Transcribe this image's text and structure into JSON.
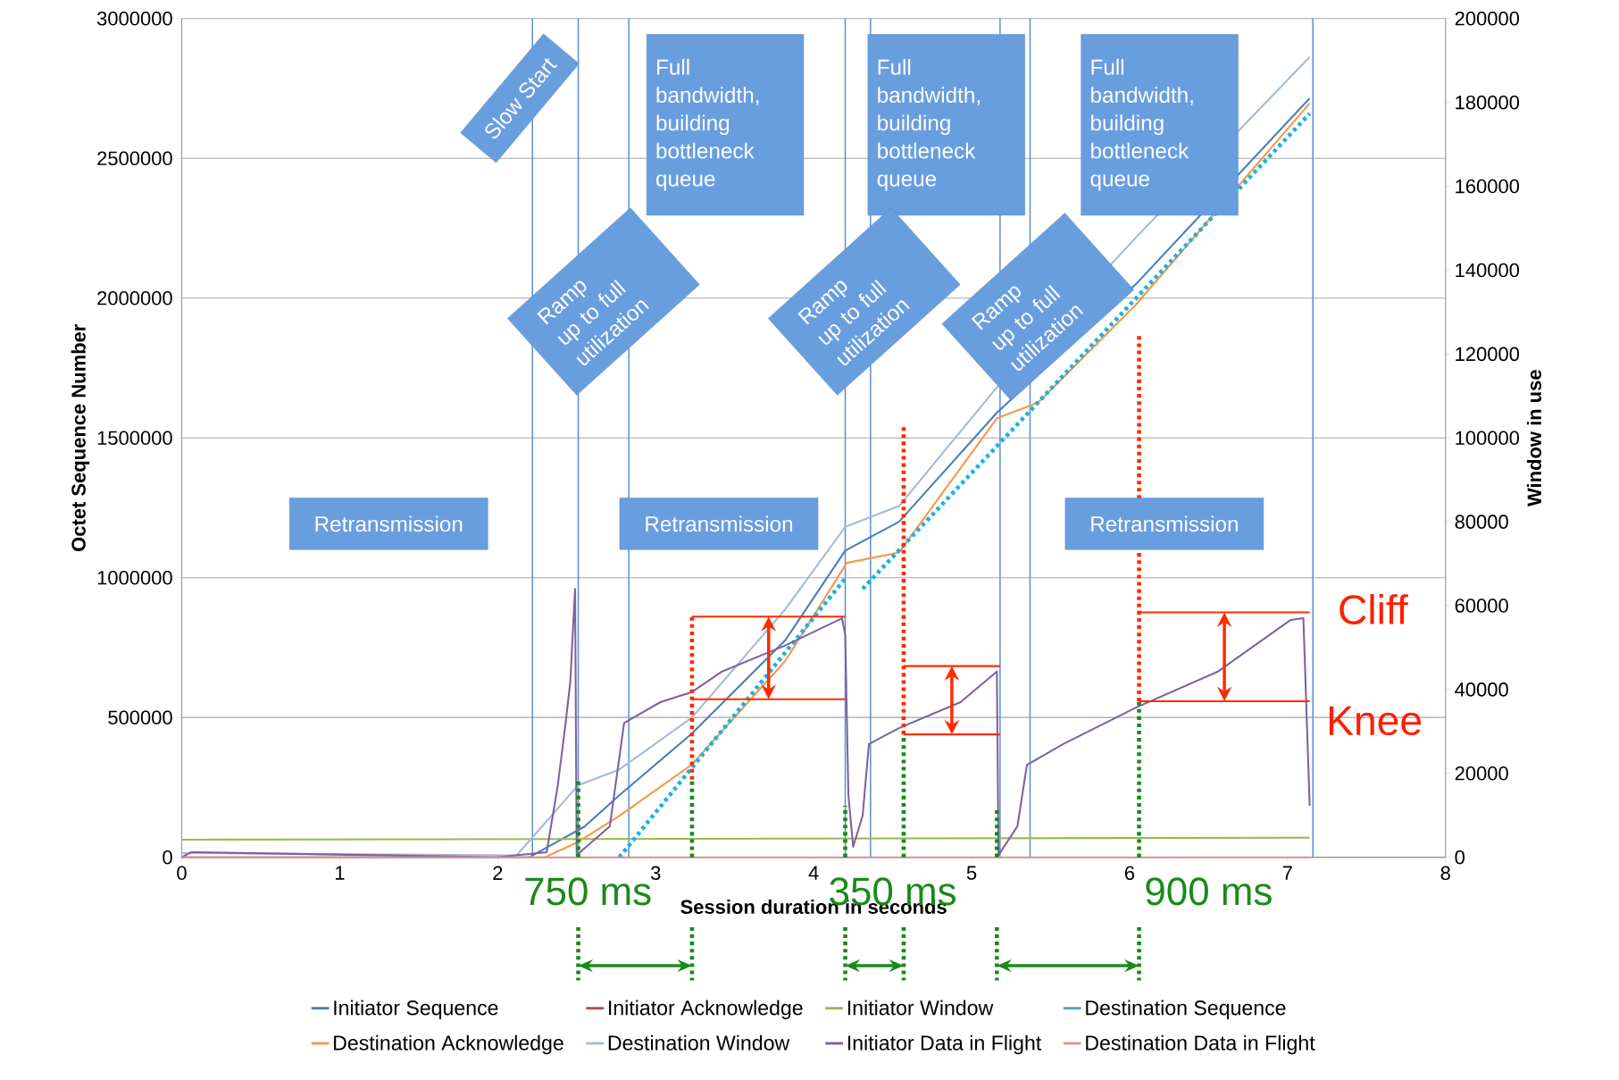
{
  "chart_data": {
    "type": "line",
    "xlabel": "Session duration in seconds",
    "ylabel": "Octet Sequence Number",
    "y2label": "Window in use",
    "xlim": [
      0,
      8
    ],
    "xticks": [
      0,
      1,
      2,
      3,
      4,
      5,
      6,
      7,
      8
    ],
    "ylim": [
      0,
      3000000
    ],
    "yticks": [
      0,
      500000,
      1000000,
      1500000,
      2000000,
      2500000,
      3000000
    ],
    "y2lim": [
      0,
      200000
    ],
    "y2ticks": [
      0,
      20000,
      40000,
      60000,
      80000,
      100000,
      120000,
      140000,
      160000,
      180000,
      200000
    ],
    "grid": "y",
    "legend": "bottom",
    "series": [
      {
        "name": "Initiator Sequence",
        "color": "#4a7ebb",
        "x": [
          0,
          2.2,
          2.55,
          2.77,
          3.23,
          3.82,
          4.2,
          4.54,
          5.16,
          6.04,
          7.14
        ],
        "values": [
          0,
          0,
          110000,
          222000,
          443000,
          776000,
          1097000,
          1200000,
          1590000,
          2050000,
          2715000
        ]
      },
      {
        "name": "Initiator Acknowledge",
        "color": "#be4b48",
        "values": [
          null,
          null
        ]
      },
      {
        "name": "Initiator Window",
        "color": "#98b954",
        "x": [
          0,
          7.14
        ],
        "values": [
          63000,
          70000
        ]
      },
      {
        "name": "Destination Sequence",
        "color": "#46aac5",
        "values": [
          null,
          null
        ]
      },
      {
        "name": "Destination Acknowledge",
        "color": "#f79646",
        "x": [
          0,
          2.3,
          2.51,
          2.77,
          3.23,
          3.82,
          4.21,
          4.54,
          5.16,
          5.42,
          6.04,
          7.14
        ],
        "values": [
          0,
          0,
          55000,
          148000,
          332000,
          702000,
          1053000,
          1090000,
          1570000,
          1626000,
          1977000,
          2697000
        ]
      },
      {
        "name": "Destination Window",
        "color": "#a5b9da",
        "x": [
          0,
          2.12,
          2.51,
          2.77,
          3.23,
          3.82,
          4.2,
          4.54,
          5.16,
          6.04,
          7.14
        ],
        "values": [
          15000,
          7000,
          258000,
          314000,
          500000,
          887000,
          1182000,
          1256000,
          1681000,
          2217000,
          2863000
        ]
      },
      {
        "name": "Initiator Data in Flight",
        "color": "#7e62a1",
        "axis": "y2",
        "x": [
          0,
          0.06,
          0.1,
          1.99,
          2.31,
          2.38,
          2.43,
          2.46,
          2.48,
          2.49,
          2.5,
          2.71,
          2.8,
          3.03,
          3.23,
          3.42,
          3.82,
          4.18,
          4.2,
          4.22,
          4.25,
          4.31,
          4.35,
          4.54,
          4.93,
          5.16,
          5.17,
          5.29,
          5.35,
          5.58,
          6.04,
          6.56,
          7.02,
          7.1,
          7.14
        ],
        "values": [
          0,
          1200,
          1200,
          0,
          1200,
          17000,
          32000,
          42000,
          57000,
          64000,
          500,
          7400,
          32000,
          37000,
          39400,
          44300,
          50500,
          57000,
          53000,
          14800,
          2500,
          9900,
          27000,
          30800,
          37000,
          44300,
          500,
          7400,
          22000,
          27000,
          35700,
          44300,
          56600,
          57000,
          12300
        ]
      },
      {
        "name": "Destination Data in Flight",
        "color": "#d99694",
        "axis": "y2",
        "x": [
          0,
          7.14
        ],
        "values": [
          0,
          0
        ]
      },
      {
        "color": "#1fb0e0",
        "line_style": "dotted",
        "x": [
          2.77,
          4.2
        ],
        "values": [
          0,
          997000
        ]
      },
      {
        "color": "#1fb0e0",
        "line_style": "dotted",
        "x": [
          4.31,
          7.14
        ],
        "values": [
          960000,
          2660000
        ]
      },
      {
        "color": "#ff2a00",
        "axis": "y2",
        "x": [
          3.23,
          4.2
        ],
        "values": [
          57400,
          57400
        ]
      },
      {
        "color": "#ff2a00",
        "axis": "y2",
        "x": [
          3.23,
          4.2
        ],
        "values": [
          37700,
          37700
        ]
      },
      {
        "color": "#ff2a00",
        "axis": "y2",
        "x": [
          4.57,
          5.18
        ],
        "values": [
          45600,
          45600
        ]
      },
      {
        "color": "#ff2a00",
        "axis": "y2",
        "x": [
          4.57,
          5.18
        ],
        "values": [
          29300,
          29300
        ]
      },
      {
        "color": "#ff2a00",
        "axis": "y2",
        "x": [
          6.06,
          7.14
        ],
        "values": [
          58400,
          58400
        ]
      },
      {
        "color": "#ff2a00",
        "axis": "y2",
        "x": [
          6.06,
          7.14
        ],
        "values": [
          37200,
          37200
        ]
      },
      {
        "color": "#ff2a00",
        "axis": "y2",
        "line_style": "dotted",
        "x": [
          3.23,
          3.23
        ],
        "values": [
          18500,
          57400
        ]
      },
      {
        "color": "#ff2a00",
        "axis": "y2",
        "line_style": "dotted",
        "x": [
          4.57,
          4.57
        ],
        "values": [
          29300,
          103000
        ]
      },
      {
        "color": "#ff2a00",
        "axis": "y2",
        "line_style": "dotted",
        "x": [
          6.06,
          6.06
        ],
        "values": [
          37200,
          125000
        ]
      },
      {
        "color": "#1a8a1a",
        "axis": "y2",
        "line_style": "dotted",
        "x": [
          2.51,
          2.51
        ],
        "values": [
          0,
          18500
        ]
      },
      {
        "color": "#1a8a1a",
        "axis": "y2",
        "line_style": "dotted",
        "x": [
          3.23,
          3.23
        ],
        "values": [
          0,
          18500
        ]
      },
      {
        "color": "#1a8a1a",
        "axis": "y2",
        "line_style": "dotted",
        "x": [
          4.2,
          4.2
        ],
        "values": [
          0,
          12300
        ]
      },
      {
        "color": "#1a8a1a",
        "axis": "y2",
        "line_style": "dotted",
        "x": [
          4.57,
          4.57
        ],
        "values": [
          0,
          29300
        ]
      },
      {
        "color": "#1a8a1a",
        "axis": "y2",
        "line_style": "dotted",
        "x": [
          5.16,
          5.16
        ],
        "values": [
          0,
          11800
        ]
      },
      {
        "color": "#1a8a1a",
        "axis": "y2",
        "line_style": "dotted",
        "x": [
          6.06,
          6.06
        ],
        "values": [
          0,
          37200
        ]
      }
    ],
    "ref_lines": [
      {
        "axis": "x",
        "value": 2.22,
        "color": "#5b8fd0"
      },
      {
        "axis": "x",
        "value": 2.51,
        "color": "#5b8fd0"
      },
      {
        "axis": "x",
        "value": 2.83,
        "color": "#5b8fd0"
      },
      {
        "axis": "x",
        "value": 4.2,
        "color": "#5b8fd0"
      },
      {
        "axis": "x",
        "value": 4.36,
        "color": "#5b8fd0"
      },
      {
        "axis": "x",
        "value": 5.18,
        "color": "#5b8fd0"
      },
      {
        "axis": "x",
        "value": 5.37,
        "color": "#5b8fd0"
      },
      {
        "axis": "x",
        "value": 7.16,
        "color": "#5b8fd0"
      }
    ],
    "annotations": [
      "Slow Start",
      "Full bandwidth, building bottleneck queue",
      "Full bandwidth, building bottleneck queue",
      "Full bandwidth, building bottleneck queue",
      "Ramp up to full utilization",
      "Ramp up to full utilization",
      "Ramp up to full utilization",
      "Retransmission",
      "Retransmission",
      "Retransmission",
      "Cliff",
      "Knee",
      "750 ms",
      "350 ms",
      "900 ms"
    ]
  }
}
